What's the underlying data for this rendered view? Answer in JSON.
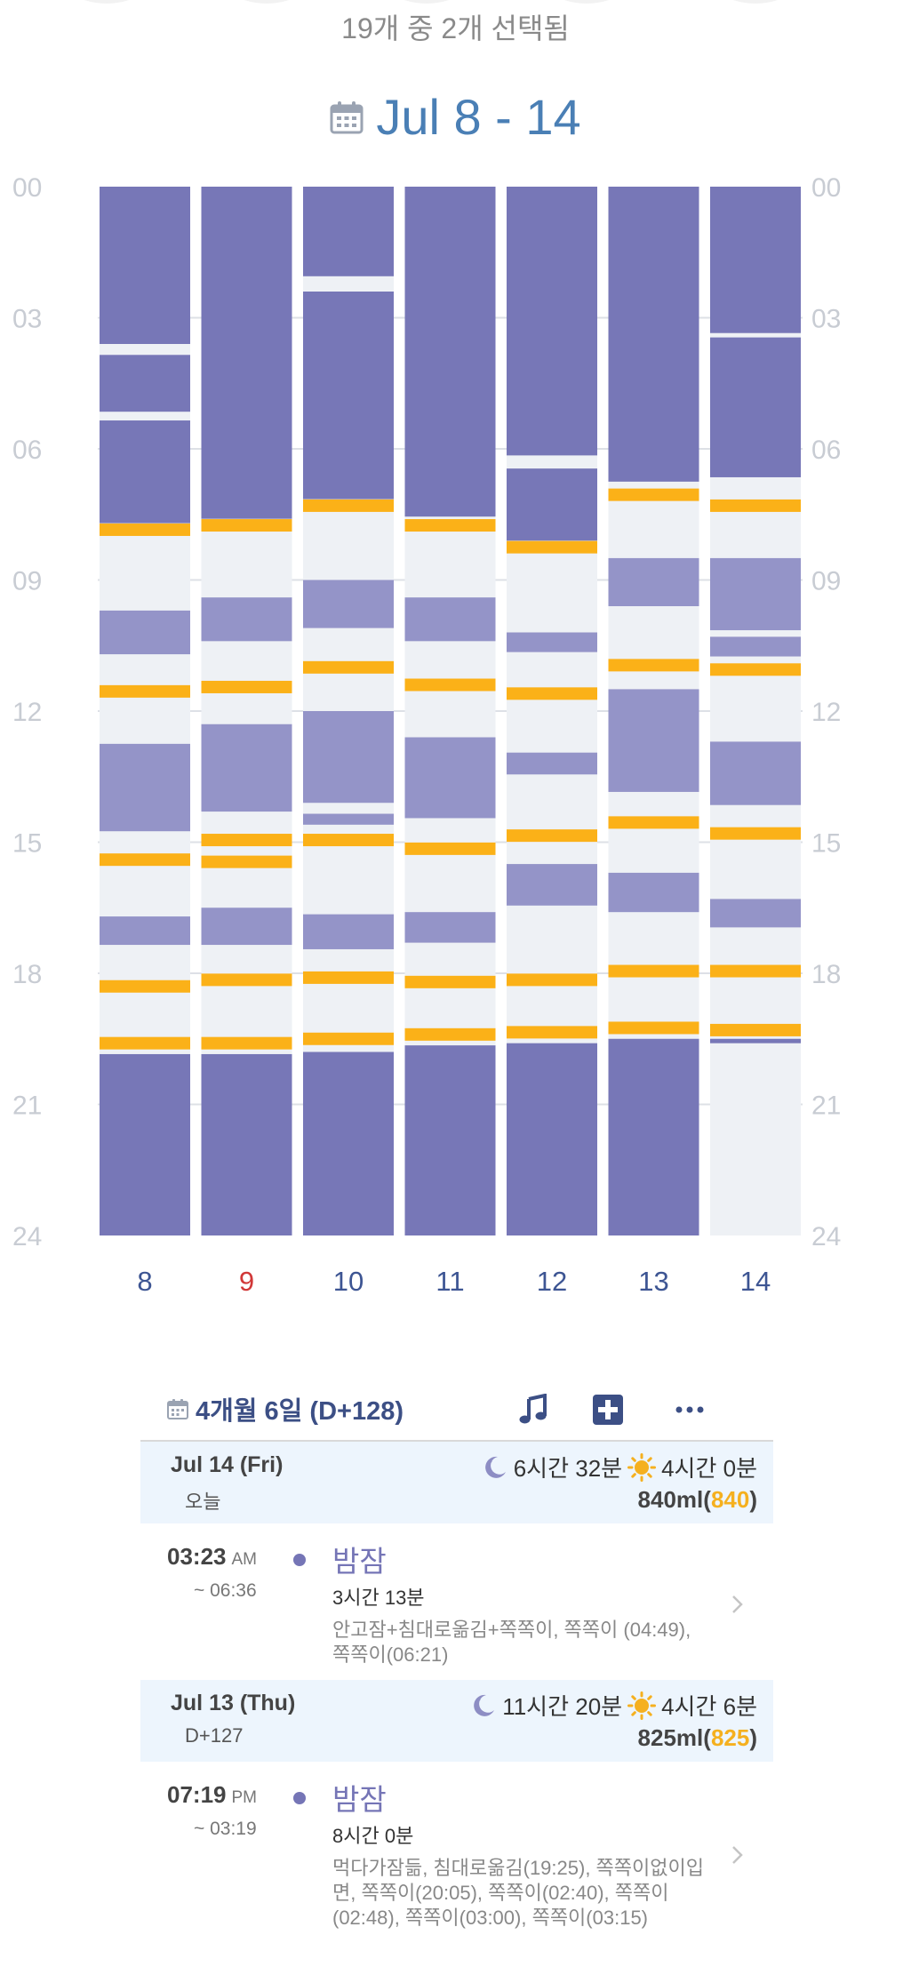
{
  "header": {
    "selection_text": "19개 중 2개 선택됨",
    "week_range": "Jul 8 - 14"
  },
  "chart_data": {
    "type": "bar",
    "hour_labels": [
      "00",
      "03",
      "06",
      "09",
      "12",
      "15",
      "18",
      "21",
      "24"
    ],
    "day_labels": [
      "8",
      "9",
      "10",
      "11",
      "12",
      "13",
      "14"
    ],
    "sunday_index": 1,
    "colors": {
      "night_sleep": "#7777b7",
      "nap": "#9494c8",
      "feeding": "#fbb118",
      "awake": "#eef1f5",
      "day_label": "#3d5593",
      "sunday_label": "#d13838",
      "hour_label": "#c8ccd3"
    },
    "days": [
      {
        "sleep": [
          [
            0,
            3.6
          ],
          [
            3.85,
            5.15
          ],
          [
            5.35,
            7.7
          ]
        ],
        "naps": [
          [
            9.7,
            10.7
          ],
          [
            12.75,
            14.75
          ],
          [
            16.7,
            17.35
          ]
        ],
        "feeds": [
          7.85,
          11.55,
          15.4,
          18.3,
          19.6
        ],
        "evening_sleep_start": 19.85
      },
      {
        "sleep": [
          [
            0,
            7.6
          ]
        ],
        "naps": [
          [
            9.4,
            10.4
          ],
          [
            12.3,
            14.3
          ],
          [
            16.5,
            17.35
          ]
        ],
        "feeds": [
          7.75,
          11.45,
          14.95,
          15.45,
          18.15,
          19.6
        ],
        "evening_sleep_start": 19.85
      },
      {
        "sleep": [
          [
            0,
            2.05
          ],
          [
            2.4,
            7.15
          ]
        ],
        "naps": [
          [
            9.0,
            10.1
          ],
          [
            12.0,
            14.1
          ],
          [
            14.35,
            14.6
          ],
          [
            16.65,
            17.45
          ]
        ],
        "feeds": [
          7.3,
          11.0,
          14.95,
          18.1,
          19.5
        ],
        "evening_sleep_start": 19.8
      },
      {
        "sleep": [
          [
            0,
            7.55
          ]
        ],
        "naps": [
          [
            9.4,
            10.4
          ],
          [
            12.6,
            14.45
          ],
          [
            16.6,
            17.3
          ]
        ],
        "feeds": [
          7.75,
          11.4,
          15.15,
          18.2,
          19.4
        ],
        "evening_sleep_start": 19.65
      },
      {
        "sleep": [
          [
            0,
            6.15
          ],
          [
            6.45,
            8.1
          ]
        ],
        "naps": [
          [
            10.2,
            10.65
          ],
          [
            12.95,
            13.45
          ],
          [
            15.5,
            16.45
          ]
        ],
        "feeds": [
          8.25,
          11.6,
          14.85,
          18.15,
          19.35
        ],
        "evening_sleep_start": 19.6
      },
      {
        "sleep": [
          [
            0,
            6.75
          ]
        ],
        "naps": [
          [
            8.5,
            9.6
          ],
          [
            11.5,
            13.85
          ],
          [
            15.7,
            16.6
          ]
        ],
        "feeds": [
          7.05,
          10.95,
          14.55,
          17.95,
          19.25
        ],
        "evening_sleep_start": 19.5
      },
      {
        "sleep": [
          [
            0,
            3.35
          ],
          [
            3.45,
            6.65
          ]
        ],
        "naps": [
          [
            8.5,
            10.15
          ],
          [
            10.3,
            10.75
          ],
          [
            12.7,
            14.15
          ],
          [
            16.3,
            16.95
          ]
        ],
        "feeds": [
          7.3,
          11.05,
          14.8,
          17.95,
          19.3
        ],
        "evening_sleep_start": 19.5,
        "evening_sleep_end": 19.6
      }
    ]
  },
  "toolbar": {
    "age_text": "4개월 6일 (D+128)",
    "icons": [
      "calendar-icon",
      "music-icon",
      "medical-plus-icon",
      "more-icon"
    ]
  },
  "timeline": {
    "days": [
      {
        "date": "Jul 14 (Fri)",
        "sub": "오늘",
        "night_sleep": "6시간 32분",
        "day_sleep": "4시간 0분",
        "milk_prefix": "840ml(",
        "milk_count": "840",
        "milk_suffix": ")",
        "entry": {
          "time": "03:23",
          "ampm": "AM",
          "end": "~ 06:36",
          "title": "밤잠",
          "duration": "3시간 13분",
          "note": "안고잠+침대로옮김+쪽쪽이, 쪽쪽이 (04:49), 쪽쪽이(06:21)"
        }
      },
      {
        "date": "Jul 13 (Thu)",
        "sub": "D+127",
        "night_sleep": "11시간 20분",
        "day_sleep": "4시간 6분",
        "milk_prefix": "825ml(",
        "milk_count": "825",
        "milk_suffix": ")",
        "entry": {
          "time": "07:19",
          "ampm": "PM",
          "end": "~ 03:19",
          "title": "밤잠",
          "duration": "8시간 0분",
          "note": "먹다가잠듦, 침대로옮김(19:25), 쪽쪽이없이입면, 쪽쪽이(20:05), 쪽쪽이(02:40), 쪽쪽이(02:48), 쪽쪽이(03:00), 쪽쪽이(03:15)"
        }
      }
    ]
  }
}
